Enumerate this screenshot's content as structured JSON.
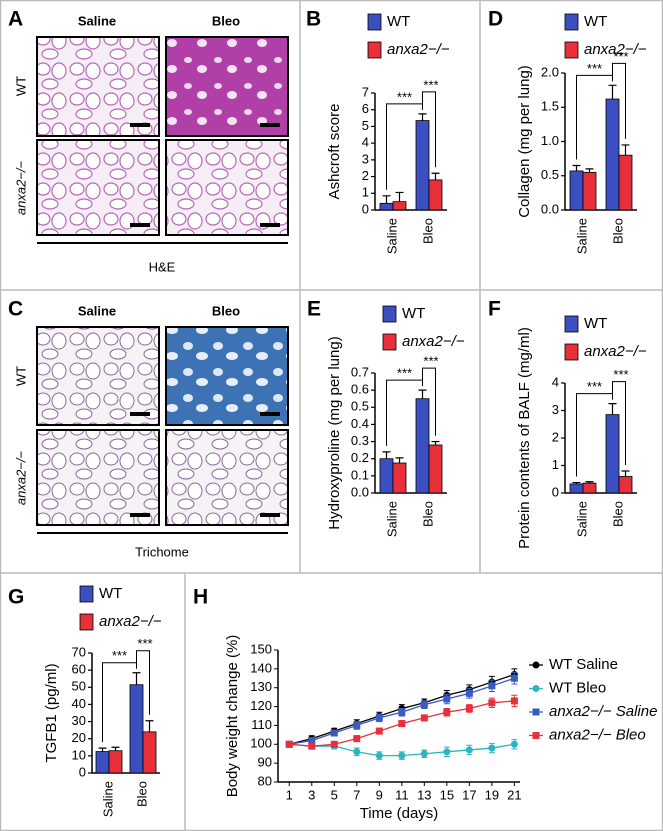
{
  "image_panels": [
    {
      "letter": "A",
      "columns": [
        "Saline",
        "Bleo"
      ],
      "rows": [
        "WT",
        "anxa2−/−"
      ],
      "caption": "H&E"
    },
    {
      "letter": "C",
      "columns": [
        "Saline",
        "Bleo"
      ],
      "rows": [
        "WT",
        "anxa2−/−"
      ],
      "caption": "Trichome"
    }
  ],
  "chart_data": [
    {
      "type": "bar",
      "panel": "B",
      "y_label": "Ashcroft score",
      "categories": [
        "Saline",
        "Bleo"
      ],
      "series": [
        {
          "name": "WT",
          "color": "#3b4fc0",
          "values": [
            0.4,
            5.35
          ],
          "errors": [
            0.45,
            0.4
          ]
        },
        {
          "name": "anxa2−/−",
          "color": "#e8303a",
          "values": [
            0.5,
            1.8
          ],
          "errors": [
            0.55,
            0.4
          ]
        }
      ],
      "ylim": [
        0,
        7
      ],
      "yticks": [
        0,
        1,
        2,
        3,
        4,
        5,
        6,
        7
      ],
      "annotations": [
        "***",
        "***"
      ]
    },
    {
      "type": "bar",
      "panel": "D",
      "y_label": "Collagen (mg per lung)",
      "categories": [
        "Saline",
        "Bleo"
      ],
      "series": [
        {
          "name": "WT",
          "color": "#3b4fc0",
          "values": [
            0.57,
            1.62
          ],
          "errors": [
            0.08,
            0.2
          ]
        },
        {
          "name": "anxa2−/−",
          "color": "#e8303a",
          "values": [
            0.55,
            0.8
          ],
          "errors": [
            0.05,
            0.15
          ]
        }
      ],
      "ylim": [
        0,
        2
      ],
      "yticks": [
        {
          "value": 0,
          "label": "0.0"
        },
        0.5,
        {
          "value": 1,
          "label": "1.0"
        },
        1.5,
        {
          "value": 2,
          "label": "2.0"
        }
      ],
      "annotations": [
        "***",
        "***"
      ]
    },
    {
      "type": "bar",
      "panel": "E",
      "y_label": "Hydroxyproline (mg per lung)",
      "categories": [
        "Saline",
        "Bleo"
      ],
      "series": [
        {
          "name": "WT",
          "color": "#3b4fc0",
          "values": [
            0.2,
            0.55
          ],
          "errors": [
            0.04,
            0.05
          ]
        },
        {
          "name": "anxa2−/−",
          "color": "#e8303a",
          "values": [
            0.175,
            0.28
          ],
          "errors": [
            0.03,
            0.02
          ]
        }
      ],
      "ylim": [
        0,
        0.7
      ],
      "yticks": [
        {
          "value": 0,
          "label": "0.0"
        },
        0.1,
        0.2,
        0.3,
        0.4,
        0.5,
        0.6,
        0.7
      ],
      "annotations": [
        "***",
        "***"
      ]
    },
    {
      "type": "bar",
      "panel": "F",
      "y_label": "Protein contents of BALF (mg/ml)",
      "categories": [
        "Saline",
        "Bleo"
      ],
      "series": [
        {
          "name": "WT",
          "color": "#3b4fc0",
          "values": [
            0.33,
            2.85
          ],
          "errors": [
            0.05,
            0.4
          ]
        },
        {
          "name": "anxa2−/−",
          "color": "#e8303a",
          "values": [
            0.36,
            0.6
          ],
          "errors": [
            0.05,
            0.2
          ]
        }
      ],
      "ylim": [
        0,
        4
      ],
      "yticks": [
        0,
        1,
        2,
        3,
        4
      ],
      "annotations": [
        "***",
        "***"
      ]
    },
    {
      "type": "bar",
      "panel": "G",
      "y_label": "TGFB1 (pg/ml)",
      "categories": [
        "Saline",
        "Bleo"
      ],
      "series": [
        {
          "name": "WT",
          "color": "#3b4fc0",
          "values": [
            12.5,
            51.5
          ],
          "errors": [
            2,
            7
          ]
        },
        {
          "name": "anxa2−/−",
          "color": "#e8303a",
          "values": [
            13,
            24
          ],
          "errors": [
            2,
            6.5
          ]
        }
      ],
      "ylim": [
        0,
        70
      ],
      "yticks": [
        0,
        10,
        20,
        30,
        40,
        50,
        60,
        70
      ],
      "annotations": [
        "***",
        "***"
      ]
    },
    {
      "type": "line",
      "panel": "H",
      "y_label": "Body weight change (%)",
      "x_label": "Time (days)",
      "x": [
        1,
        3,
        5,
        7,
        9,
        11,
        13,
        15,
        17,
        19,
        21
      ],
      "series": [
        {
          "name": "WT Saline",
          "color": "#000000",
          "marker": "circle",
          "values": [
            100,
            103,
            107,
            111,
            115,
            119,
            122,
            126,
            129,
            133,
            137
          ],
          "errors": [
            1,
            1.5,
            1.5,
            2,
            2,
            2,
            2,
            2.5,
            2.5,
            3,
            3
          ]
        },
        {
          "name": "WT Bleo",
          "color": "#2bb5c4",
          "marker": "circle",
          "values": [
            100,
            99,
            99,
            96,
            94,
            94,
            95,
            96,
            97,
            98,
            100
          ],
          "errors": [
            1,
            1.5,
            1.5,
            2,
            2,
            2,
            2,
            2.5,
            2.5,
            2.5,
            2.5
          ]
        },
        {
          "name": "anxa2−/− Saline",
          "color": "#3a5bbf",
          "marker": "square",
          "values": [
            100,
            102,
            106,
            110,
            114,
            117,
            121,
            124,
            127,
            131,
            135
          ],
          "errors": [
            1,
            1.5,
            1.5,
            2,
            2,
            2,
            2,
            2.5,
            2.5,
            3,
            3
          ]
        },
        {
          "name": "anxa2−/− Bleo",
          "color": "#e8303a",
          "marker": "square",
          "values": [
            100,
            99,
            100,
            103,
            107,
            111,
            114,
            117,
            119,
            122,
            123
          ],
          "errors": [
            1,
            1.5,
            1.5,
            1.5,
            1.5,
            1.5,
            1.5,
            2,
            2,
            2.5,
            3
          ]
        }
      ],
      "xlim": [
        0,
        21.5
      ],
      "xticks": [
        1,
        3,
        5,
        7,
        9,
        11,
        13,
        15,
        17,
        19,
        21
      ],
      "ylim": [
        80,
        150
      ],
      "yticks": [
        80,
        90,
        100,
        110,
        120,
        130,
        140,
        150
      ]
    }
  ]
}
